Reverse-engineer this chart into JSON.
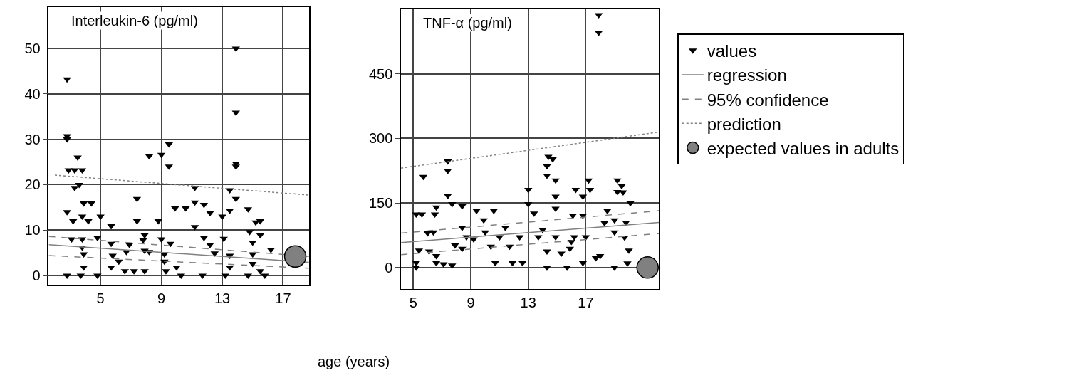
{
  "chart_data": [
    {
      "type": "scatter",
      "title": "Interleukin-6 (pg/ml)",
      "xlabel": "age (years)",
      "xlim": [
        1.6,
        18.7
      ],
      "ylim": [
        -2,
        59
      ],
      "xticks": [
        5,
        9,
        13,
        17
      ],
      "yticks": [
        0,
        10,
        20,
        30,
        40,
        50
      ],
      "grid": true,
      "series": [
        {
          "color": "#000000",
          "marker": "triangle",
          "x": [
            2.8,
            2.8,
            2.8,
            3.5,
            2.9,
            3.3,
            3.8,
            3.3,
            3.6,
            3.9,
            4.4,
            2.8,
            3.2,
            3.8,
            4.2,
            5.0,
            3.1,
            3.8,
            3.8,
            3.9,
            3.9,
            4.8,
            5.7,
            5.7,
            5.8,
            6.2,
            5.7,
            6.9,
            6.7,
            7.4,
            7.4,
            7.9,
            8.2,
            7.8,
            7.9,
            8.2,
            9.0,
            9.5,
            9.5,
            8.8,
            9.0,
            9.6,
            9.2,
            9.2,
            10.0,
            9.9,
            10.6,
            11.2,
            11.2,
            11.8,
            12.2,
            11.2,
            11.8,
            12.2,
            12.5,
            13.0,
            13.1,
            13.5,
            13.9,
            13.9,
            13.9,
            13.9,
            13.9,
            13.5,
            13.5,
            13.5,
            14.7,
            15.2,
            15.5,
            14.8,
            15.0,
            15.5,
            15.0,
            15.0,
            16.2,
            15.5,
            2.8,
            3.7,
            4.8,
            6.6,
            7.2,
            7.9,
            9.3,
            10.3,
            11.7,
            13.2,
            14.7,
            15.8
          ],
          "values": [
            43.2,
            30.7,
            30.0,
            26.0,
            23.2,
            23.2,
            23.2,
            19.3,
            20.0,
            15.9,
            15.9,
            14.0,
            12.0,
            13.0,
            12.0,
            13.0,
            8.0,
            8.0,
            6.2,
            4.7,
            1.8,
            8.3,
            10.9,
            7.0,
            4.4,
            3.1,
            1.8,
            6.8,
            5.2,
            16.9,
            12.0,
            8.9,
            26.3,
            7.8,
            5.5,
            5.2,
            26.6,
            28.9,
            24.0,
            12.0,
            8.0,
            7.0,
            4.7,
            3.1,
            1.8,
            14.8,
            14.8,
            19.3,
            16.1,
            15.6,
            13.8,
            10.7,
            8.3,
            6.8,
            4.9,
            13.0,
            8.1,
            18.8,
            50.0,
            35.9,
            24.7,
            24.0,
            16.9,
            14.3,
            4.4,
            1.8,
            14.6,
            11.7,
            12.0,
            9.6,
            7.3,
            8.9,
            4.7,
            2.6,
            5.7,
            1.0,
            0,
            0,
            0,
            1.0,
            1.0,
            1.0,
            1.0,
            0,
            0,
            0,
            0,
            0
          ]
        },
        {
          "type": "line",
          "color": "#808080",
          "line_style": "solid",
          "x": [
            1.6,
            18.7
          ],
          "values": [
            6.8,
            2.9
          ]
        },
        {
          "type": "line",
          "color": "#808080",
          "line_style": "dashed",
          "x": [
            1.6,
            18.7
          ],
          "values": [
            8.6,
            4.2
          ]
        },
        {
          "type": "line",
          "color": "#808080",
          "line_style": "dashed",
          "x": [
            1.6,
            18.7
          ],
          "values": [
            4.4,
            1.6
          ]
        },
        {
          "type": "line",
          "color": "#808080",
          "line_style": "dotted",
          "x": [
            2.0,
            18.7
          ],
          "values": [
            22.1,
            17.7
          ]
        },
        {
          "type": "scatter",
          "color": "#808080",
          "marker": "circle",
          "x": [
            17.8
          ],
          "values": [
            4.2
          ]
        }
      ]
    },
    {
      "type": "scatter",
      "title": "TNF-α (pg/ml)",
      "xlim": [
        4.15,
        22.1
      ],
      "ylim": [
        -50,
        600
      ],
      "xticks": [
        5,
        9,
        13,
        17
      ],
      "yticks": [
        0,
        150,
        300,
        450
      ],
      "grid": true,
      "legend": "right",
      "series": [
        {
          "name": "values",
          "color": "#000000",
          "marker": "triangle",
          "x": [
            5.7,
            7.4,
            7.4,
            7.4,
            7.7,
            8.4,
            5.2,
            5.6,
            6.6,
            6.5,
            6.0,
            6.4,
            5.4,
            6.1,
            6.6,
            5.2,
            6.6,
            7.1,
            7.7,
            5.2,
            7.9,
            8.4,
            8.7,
            8.4,
            9.4,
            9.9,
            10.6,
            9.2,
            10.0,
            10.4,
            10.7,
            11.0,
            11.4,
            11.7,
            11.9,
            12.4,
            12.6,
            13.0,
            13.0,
            13.4,
            13.7,
            14.0,
            14.3,
            14.3,
            14.3,
            14.4,
            14.7,
            14.3,
            14.9,
            14.9,
            14.9,
            14.9,
            15.3,
            15.7,
            15.9,
            16.2,
            16.0,
            16.3,
            16.1,
            16.8,
            16.8,
            17.2,
            17.3,
            17.0,
            16.8,
            17.7,
            18.0,
            18.3,
            18.5,
            19.0,
            19.0,
            19.2,
            19.2,
            19.0,
            17.9,
            17.9,
            19.5,
            19.6,
            20.1,
            19.8,
            19.7,
            20.0,
            19.9
          ],
          "values": [
            211,
            247,
            225,
            167,
            148,
            143,
            124,
            124,
            140,
            124,
            80,
            82,
            40,
            38,
            27,
            11,
            11,
            8,
            5,
            0,
            52,
            93,
            71,
            44,
            132,
            110,
            132,
            66,
            82,
            49,
            11,
            71,
            93,
            49,
            11,
            71,
            11,
            181,
            148,
            126,
            71,
            88,
            38,
            0,
            236,
            258,
            252,
            214,
            203,
            165,
            137,
            71,
            33,
            0,
            44,
            71,
            60,
            181,
            121,
            121,
            165,
            203,
            181,
            71,
            11,
            22,
            27,
            104,
            132,
            110,
            82,
            203,
            176,
            0,
            587,
            546,
            190,
            175,
            150,
            105,
            70,
            40,
            10
          ]
        },
        {
          "name": "regression",
          "type": "line",
          "color": "#808080",
          "line_style": "solid",
          "x": [
            4.15,
            22.1
          ],
          "values": [
            58,
            105
          ]
        },
        {
          "name": "95% confidence",
          "type": "line",
          "color": "#808080",
          "line_style": "dashed",
          "x": [
            4.15,
            22.1
          ],
          "values": [
            80,
            132
          ]
        },
        {
          "type": "line",
          "color": "#808080",
          "line_style": "dashed",
          "x": [
            4.15,
            22.1
          ],
          "values": [
            30,
            79
          ]
        },
        {
          "name": "prediction",
          "type": "line",
          "color": "#808080",
          "line_style": "dotted",
          "x": [
            4.15,
            22.1
          ],
          "values": [
            231,
            315
          ]
        },
        {
          "name": "expected values in adults",
          "type": "scatter",
          "color": "#808080",
          "marker": "circle",
          "x": [
            21.3
          ],
          "values": [
            0
          ]
        }
      ]
    }
  ]
}
